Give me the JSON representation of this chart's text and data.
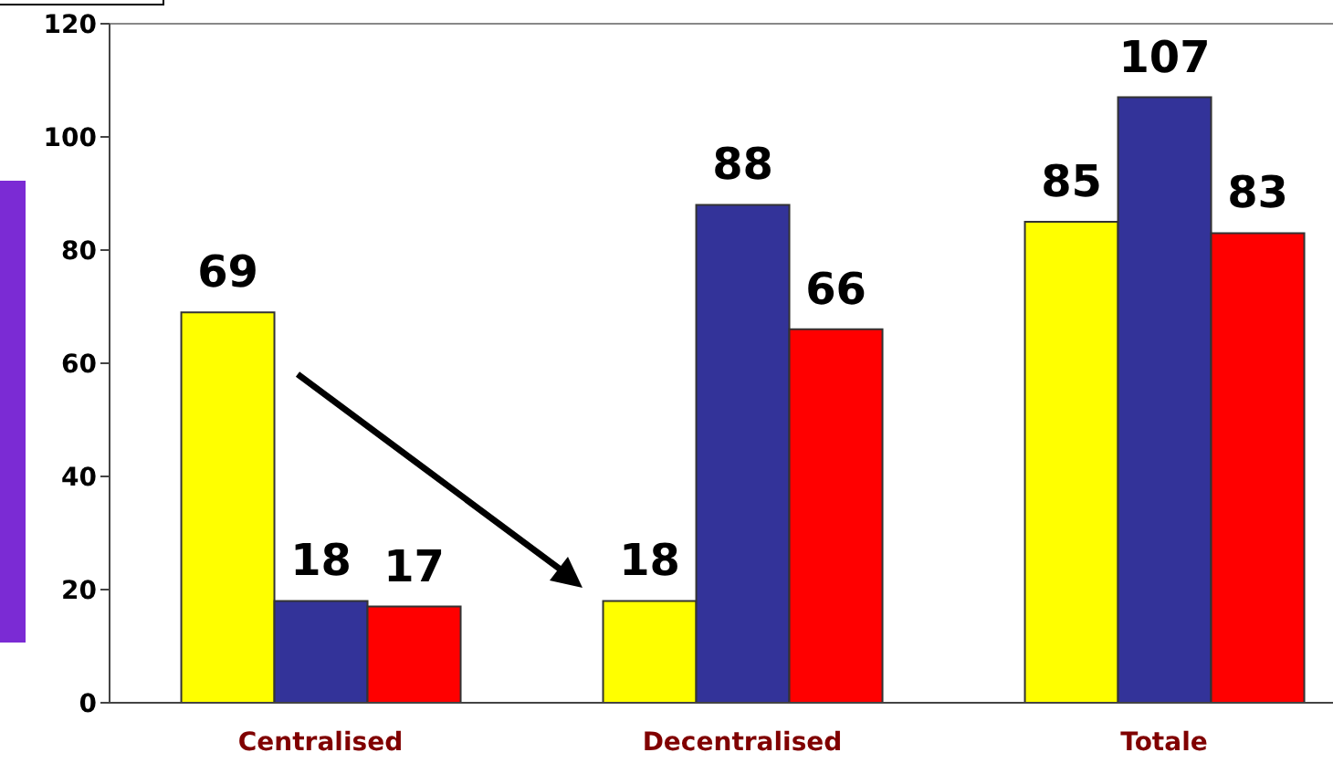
{
  "chart_data": {
    "type": "bar",
    "categories": [
      "Centralised",
      "Decentralised",
      "Totale"
    ],
    "series": [
      {
        "color": "#ffff00",
        "values": [
          69,
          18,
          85
        ]
      },
      {
        "color": "#333399",
        "values": [
          18,
          88,
          107
        ]
      },
      {
        "color": "#ff0000",
        "values": [
          17,
          66,
          83
        ]
      }
    ],
    "ylim": [
      0,
      120
    ],
    "yticks": [
      0,
      20,
      40,
      60,
      80,
      100,
      120
    ],
    "data_labels": true
  }
}
